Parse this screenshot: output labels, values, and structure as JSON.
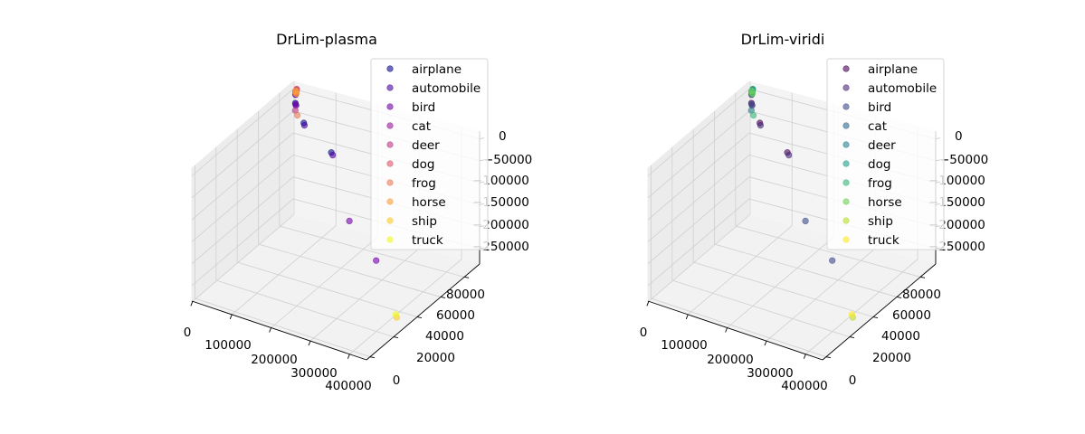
{
  "chart_data": [
    {
      "type": "scatter",
      "projection": "3d",
      "title": "DrLim-plasma",
      "colormap": "plasma",
      "grid": true,
      "legend_placement": "top-right",
      "x_ticks": [
        "0",
        "100000",
        "200000",
        "300000",
        "400000"
      ],
      "y_ticks": [
        "0",
        "20000",
        "40000",
        "60000",
        "80000"
      ],
      "z_ticks": [
        "0",
        "−50000",
        "−100000",
        "−150000",
        "−200000",
        "−250000"
      ],
      "xlim": [
        -10000,
        420000
      ],
      "ylim": [
        -2000,
        92000
      ],
      "zlim": [
        -270000,
        10000
      ],
      "series": [
        {
          "name": "airplane",
          "color": "#0d0887",
          "points": [
            [
              2000,
              90000,
              -2000
            ],
            [
              6000,
              88000,
              -3000
            ],
            [
              20000,
              82000,
              -9000
            ],
            [
              60000,
              74000,
              -25000
            ],
            [
              140000,
              68000,
              -55000
            ]
          ]
        },
        {
          "name": "automobile",
          "color": "#46039f",
          "points": [
            [
              3000,
              89000,
              -2500
            ],
            [
              8000,
              87000,
              -4000
            ],
            [
              24000,
              81000,
              -11000
            ],
            [
              64000,
              73000,
              -27000
            ],
            [
              146000,
              67000,
              -57000
            ]
          ]
        },
        {
          "name": "bird",
          "color": "#7201a8",
          "points": [
            [
              2500,
              89500,
              -2200
            ],
            [
              7000,
              87500,
              -3500
            ],
            [
              22000,
              81500,
              -10000
            ],
            [
              220000,
              54000,
              -150000
            ],
            [
              300000,
              48000,
              -200000
            ]
          ]
        },
        {
          "name": "cat",
          "color": "#9c179e",
          "points": [
            [
              1500,
              90500,
              -1500
            ],
            [
              4000,
              89000,
              -2500
            ]
          ]
        },
        {
          "name": "deer",
          "color": "#bd3786",
          "points": [
            [
              1800,
              90200,
              -1700
            ],
            [
              5000,
              88500,
              -2800
            ],
            [
              30000,
              78000,
              -14000
            ]
          ]
        },
        {
          "name": "dog",
          "color": "#d8576b",
          "points": [
            [
              1200,
              90800,
              -1200
            ],
            [
              3500,
              89300,
              -2300
            ]
          ]
        },
        {
          "name": "frog",
          "color": "#ed7953",
          "points": [
            [
              2200,
              89700,
              -2000
            ],
            [
              6500,
              88000,
              -3200
            ],
            [
              40000,
              76000,
              -18000
            ]
          ]
        },
        {
          "name": "horse",
          "color": "#fb9f3a",
          "points": [
            [
              2600,
              89300,
              -2100
            ],
            [
              7500,
              87800,
              -3600
            ]
          ]
        },
        {
          "name": "ship",
          "color": "#fdca26",
          "points": [
            [
              400000,
              30000,
              -255000
            ]
          ]
        },
        {
          "name": "truck",
          "color": "#f0f921",
          "points": [
            [
              395000,
              31000,
              -252000
            ]
          ]
        }
      ]
    },
    {
      "type": "scatter",
      "projection": "3d",
      "title": "DrLim-viridi",
      "colormap": "viridis",
      "grid": true,
      "legend_placement": "top-right",
      "x_ticks": [
        "0",
        "100000",
        "200000",
        "300000",
        "400000"
      ],
      "y_ticks": [
        "0",
        "20000",
        "40000",
        "60000",
        "80000"
      ],
      "z_ticks": [
        "0",
        "−50000",
        "−100000",
        "−150000",
        "−200000",
        "−250000"
      ],
      "xlim": [
        -10000,
        420000
      ],
      "ylim": [
        -2000,
        92000
      ],
      "zlim": [
        -270000,
        10000
      ],
      "series": [
        {
          "name": "airplane",
          "color": "#440154",
          "points": [
            [
              2000,
              90000,
              -2000
            ],
            [
              6000,
              88000,
              -3000
            ],
            [
              20000,
              82000,
              -9000
            ],
            [
              60000,
              74000,
              -25000
            ],
            [
              140000,
              68000,
              -55000
            ]
          ]
        },
        {
          "name": "automobile",
          "color": "#482878",
          "points": [
            [
              3000,
              89000,
              -2500
            ],
            [
              8000,
              87000,
              -4000
            ],
            [
              24000,
              81000,
              -11000
            ],
            [
              64000,
              73000,
              -27000
            ],
            [
              146000,
              67000,
              -57000
            ]
          ]
        },
        {
          "name": "bird",
          "color": "#3e4989",
          "points": [
            [
              2500,
              89500,
              -2200
            ],
            [
              7000,
              87500,
              -3500
            ],
            [
              22000,
              81500,
              -10000
            ],
            [
              220000,
              54000,
              -150000
            ],
            [
              300000,
              48000,
              -200000
            ]
          ]
        },
        {
          "name": "cat",
          "color": "#31688e",
          "points": [
            [
              1500,
              90500,
              -1500
            ],
            [
              4000,
              89000,
              -2500
            ]
          ]
        },
        {
          "name": "deer",
          "color": "#26828e",
          "points": [
            [
              1800,
              90200,
              -1700
            ],
            [
              5000,
              88500,
              -2800
            ],
            [
              30000,
              78000,
              -14000
            ]
          ]
        },
        {
          "name": "dog",
          "color": "#1f9e89",
          "points": [
            [
              1200,
              90800,
              -1200
            ],
            [
              3500,
              89300,
              -2300
            ]
          ]
        },
        {
          "name": "frog",
          "color": "#35b779",
          "points": [
            [
              2200,
              89700,
              -2000
            ],
            [
              6500,
              88000,
              -3200
            ],
            [
              40000,
              76000,
              -18000
            ]
          ]
        },
        {
          "name": "horse",
          "color": "#6ece58",
          "points": [
            [
              2600,
              89300,
              -2100
            ],
            [
              7500,
              87800,
              -3600
            ]
          ]
        },
        {
          "name": "ship",
          "color": "#b5de2b",
          "points": [
            [
              400000,
              30000,
              -255000
            ]
          ]
        },
        {
          "name": "truck",
          "color": "#fde725",
          "points": [
            [
              395000,
              31000,
              -252000
            ]
          ]
        }
      ]
    }
  ]
}
